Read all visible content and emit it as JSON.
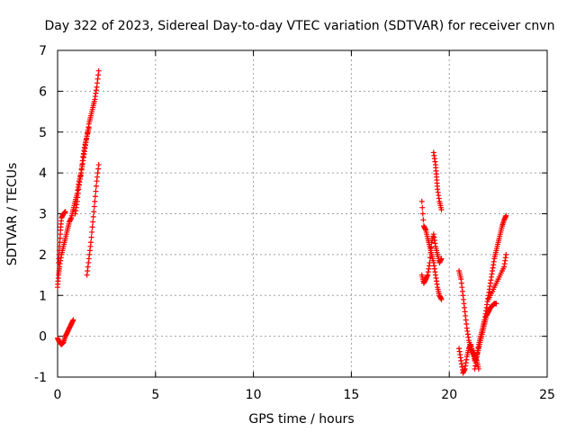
{
  "colors": {
    "series": "#ff0000",
    "background": "#ffffff",
    "axis": "#000000",
    "grid": "#a0a0a0"
  },
  "chart_data": {
    "type": "scatter",
    "title": "Day 322 of 2023, Sidereal Day-to-day VTEC variation (SDTVAR) for receiver cnvn",
    "xlabel": "GPS time / hours",
    "ylabel": "SDTVAR / TECUs",
    "xlim": [
      0,
      25
    ],
    "ylim": [
      -1,
      7
    ],
    "xticks": [
      0,
      5,
      10,
      15,
      20,
      25
    ],
    "yticks": [
      -1,
      0,
      1,
      2,
      3,
      4,
      5,
      6,
      7
    ],
    "grid": true,
    "marker": "+",
    "series": [
      {
        "name": "SDTVAR",
        "segments": [
          {
            "x": [
              0.0,
              0.1,
              0.2,
              0.3,
              0.4,
              0.5,
              0.6,
              0.7,
              0.8
            ],
            "y": [
              -0.05,
              -0.15,
              -0.2,
              -0.15,
              0.0,
              0.1,
              0.2,
              0.3,
              0.4
            ]
          },
          {
            "x": [
              0.0,
              0.05,
              0.1,
              0.2,
              0.3,
              0.4,
              0.5,
              0.6,
              0.7,
              0.8,
              0.9,
              1.0,
              1.1,
              1.2,
              1.3,
              1.4,
              1.5,
              1.6,
              1.7,
              1.8,
              1.9,
              2.0,
              2.1
            ],
            "y": [
              1.2,
              1.5,
              1.7,
              2.0,
              2.2,
              2.4,
              2.6,
              2.8,
              2.9,
              3.1,
              3.3,
              3.5,
              3.8,
              4.0,
              4.3,
              4.6,
              4.9,
              5.2,
              5.4,
              5.6,
              5.8,
              6.1,
              6.5
            ]
          },
          {
            "x": [
              0.05,
              0.1,
              0.15,
              0.2,
              0.3,
              0.4
            ],
            "y": [
              1.8,
              2.2,
              2.6,
              2.9,
              3.0,
              3.05
            ]
          },
          {
            "x": [
              0.9,
              1.0,
              1.1,
              1.2,
              1.3,
              1.4,
              1.5,
              1.6
            ],
            "y": [
              3.0,
              3.3,
              3.7,
              4.0,
              4.4,
              4.7,
              4.9,
              5.1
            ]
          },
          {
            "x": [
              1.5,
              1.6,
              1.7,
              1.8,
              1.9,
              2.0,
              2.1
            ],
            "y": [
              1.5,
              1.9,
              2.3,
              2.8,
              3.3,
              3.8,
              4.2
            ]
          },
          {
            "x": [
              18.6,
              18.7,
              18.8,
              18.9,
              19.0,
              19.1,
              19.2,
              19.3,
              19.4,
              19.5,
              19.6
            ],
            "y": [
              3.3,
              2.7,
              2.6,
              2.4,
              2.2,
              2.0,
              1.8,
              1.5,
              1.2,
              1.0,
              0.9
            ]
          },
          {
            "x": [
              18.6,
              18.7,
              18.8,
              18.9,
              19.0,
              19.1,
              19.2,
              19.3,
              19.4,
              19.5,
              19.6
            ],
            "y": [
              1.5,
              1.3,
              1.4,
              1.5,
              1.8,
              2.3,
              2.5,
              2.2,
              2.0,
              1.8,
              1.9
            ]
          },
          {
            "x": [
              19.2,
              19.3,
              19.35,
              19.4,
              19.5,
              19.6
            ],
            "y": [
              4.5,
              4.2,
              3.9,
              3.6,
              3.3,
              3.1
            ]
          },
          {
            "x": [
              20.5,
              20.6,
              20.7,
              20.8,
              20.9,
              21.0,
              21.1,
              21.2,
              21.3,
              21.4,
              21.5
            ],
            "y": [
              1.6,
              1.4,
              1.0,
              0.6,
              0.2,
              -0.1,
              -0.3,
              -0.4,
              -0.5,
              -0.6,
              -0.8
            ]
          },
          {
            "x": [
              20.5,
              20.6,
              20.7,
              20.8,
              20.9,
              21.0,
              21.1,
              21.2,
              21.3,
              21.4,
              21.5,
              21.6,
              21.7,
              21.8,
              21.9,
              22.0,
              22.1,
              22.2,
              22.3,
              22.4
            ],
            "y": [
              -0.3,
              -0.6,
              -0.9,
              -0.8,
              -0.5,
              -0.3,
              -0.2,
              -0.4,
              -0.6,
              -0.5,
              -0.3,
              -0.1,
              0.1,
              0.3,
              0.5,
              0.6,
              0.7,
              0.75,
              0.8,
              0.8
            ]
          },
          {
            "x": [
              21.3,
              21.4,
              21.5,
              21.6,
              21.7,
              21.8,
              21.9,
              22.0,
              22.1,
              22.2,
              22.3,
              22.4,
              22.5,
              22.6,
              22.7,
              22.8,
              22.9
            ],
            "y": [
              -0.8,
              -0.5,
              -0.2,
              0.0,
              0.2,
              0.4,
              0.7,
              1.0,
              1.3,
              1.6,
              1.9,
              2.1,
              2.3,
              2.5,
              2.7,
              2.85,
              2.95
            ]
          },
          {
            "x": [
              22.0,
              22.2,
              22.4,
              22.6,
              22.8,
              22.9
            ],
            "y": [
              0.9,
              1.1,
              1.3,
              1.5,
              1.7,
              2.0
            ]
          }
        ]
      }
    ]
  }
}
